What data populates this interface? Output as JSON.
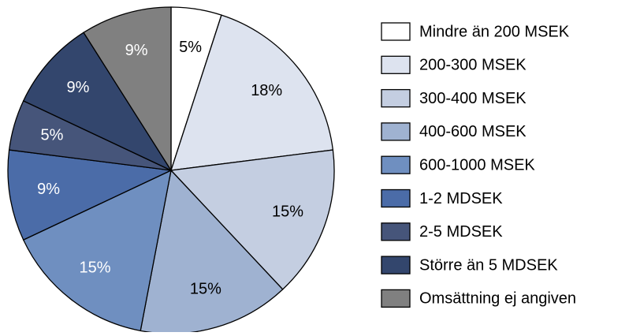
{
  "chart_data": {
    "type": "pie",
    "categories": [
      "Mindre än 200 MSEK",
      "200-300 MSEK",
      "300-400 MSEK",
      "400-600 MSEK",
      "600-1000 MSEK",
      "1-2 MDSEK",
      "2-5 MDSEK",
      "Större än 5 MDSEK",
      "Omsättning ej angiven"
    ],
    "values": [
      5,
      18,
      15,
      15,
      15,
      9,
      5,
      9,
      9
    ],
    "value_labels": [
      "5%",
      "18%",
      "15%",
      "15%",
      "15%",
      "9%",
      "5%",
      "9%",
      "9%"
    ],
    "colors": [
      "#ffffff",
      "#dde3ef",
      "#c4cee1",
      "#9fb2d1",
      "#6f8fc0",
      "#4b6ca8",
      "#46557a",
      "#33466d",
      "#808080"
    ],
    "legend": "right"
  }
}
